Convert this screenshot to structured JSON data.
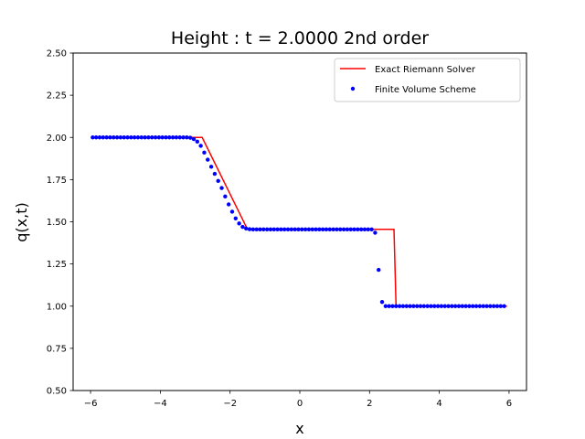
{
  "chart_data": {
    "type": "line",
    "title": "Height : t = 2.0000 2nd order",
    "xlabel": "x",
    "ylabel": "q(x,t)",
    "xlim": [
      -6.5,
      6.5
    ],
    "ylim": [
      0.5,
      2.5
    ],
    "xticks": [
      -6,
      -4,
      -2,
      0,
      2,
      4,
      6
    ],
    "xtick_labels": [
      "−6",
      "−4",
      "−2",
      "0",
      "2",
      "4",
      "6"
    ],
    "yticks": [
      0.5,
      0.75,
      1.0,
      1.25,
      1.5,
      1.75,
      2.0,
      2.25,
      2.5
    ],
    "ytick_labels": [
      "0.50",
      "0.75",
      "1.00",
      "1.25",
      "1.50",
      "1.75",
      "2.00",
      "2.25",
      "2.50"
    ],
    "grid": false,
    "legend_position": "top-right",
    "series": [
      {
        "name": "Exact Riemann Solver",
        "kind": "line",
        "color": "#ff0000",
        "x": [
          -5.94,
          -2.8,
          -1.5,
          2.7,
          2.76,
          5.94
        ],
        "y": [
          2.0,
          2.0,
          1.455,
          1.455,
          1.0,
          1.0
        ]
      },
      {
        "name": "Finite Volume Scheme",
        "kind": "scatter",
        "color": "#0000ff",
        "x_start": -5.94,
        "x_step": 0.1,
        "count": 119,
        "y": [
          2.0,
          2.0,
          2.0,
          2.0,
          2.0,
          2.0,
          2.0,
          2.0,
          2.0,
          2.0,
          2.0,
          2.0,
          2.0,
          2.0,
          2.0,
          2.0,
          2.0,
          2.0,
          2.0,
          2.0,
          2.0,
          2.0,
          2.0,
          2.0,
          2.0,
          2.0,
          2.0,
          2.0,
          1.998,
          1.99,
          1.975,
          1.95,
          1.91,
          1.868,
          1.826,
          1.784,
          1.742,
          1.7,
          1.65,
          1.603,
          1.56,
          1.52,
          1.49,
          1.47,
          1.46,
          1.456,
          1.455,
          1.455,
          1.455,
          1.455,
          1.455,
          1.455,
          1.455,
          1.455,
          1.455,
          1.455,
          1.455,
          1.455,
          1.455,
          1.455,
          1.455,
          1.455,
          1.455,
          1.455,
          1.455,
          1.455,
          1.455,
          1.455,
          1.455,
          1.455,
          1.455,
          1.455,
          1.455,
          1.455,
          1.455,
          1.455,
          1.455,
          1.455,
          1.455,
          1.455,
          1.455,
          1.435,
          1.215,
          1.025,
          1.0,
          1.0,
          1.0,
          1.0,
          1.0,
          1.0,
          1.0,
          1.0,
          1.0,
          1.0,
          1.0,
          1.0,
          1.0,
          1.0,
          1.0,
          1.0,
          1.0,
          1.0,
          1.0,
          1.0,
          1.0,
          1.0,
          1.0,
          1.0,
          1.0,
          1.0,
          1.0,
          1.0,
          1.0,
          1.0,
          1.0,
          1.0,
          1.0,
          1.0,
          1.0
        ]
      }
    ]
  }
}
